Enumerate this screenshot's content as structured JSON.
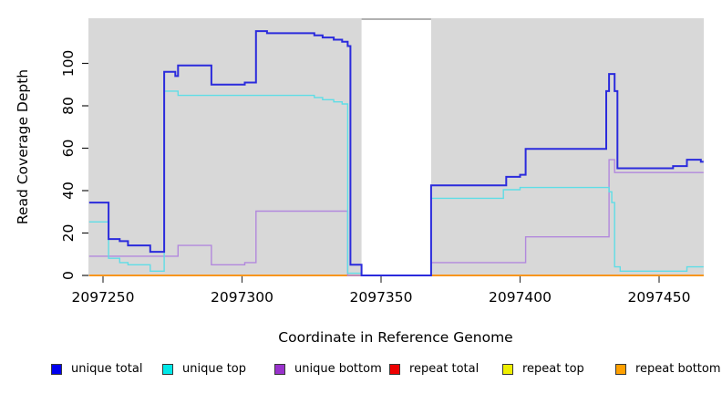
{
  "figure": {
    "background": "#ffffff",
    "plot_background": "#d8d8d8",
    "gap_top_border": "#979797"
  },
  "y_axis": {
    "title": "Read Coverage Depth",
    "ticks": [
      "0",
      "20",
      "40",
      "60",
      "80",
      "100"
    ]
  },
  "x_axis": {
    "title": "Coordinate in Reference Genome",
    "ticks": [
      "2097250",
      "2097300",
      "2097350",
      "2097400",
      "2097450"
    ]
  },
  "legend": {
    "position": "bottom",
    "items": [
      {
        "label": "unique total",
        "color": "#0000EE"
      },
      {
        "label": "unique top",
        "color": "#00E8E8"
      },
      {
        "label": "unique bottom",
        "color": "#9932CC"
      },
      {
        "label": "repeat total",
        "color": "#EE0000"
      },
      {
        "label": "repeat top",
        "color": "#EEEE00"
      },
      {
        "label": "repeat bottom",
        "color": "#FFA000"
      }
    ]
  },
  "chart_data": {
    "type": "line",
    "subtype": "step",
    "title": "",
    "xlabel": "Coordinate in Reference Genome",
    "ylabel": "Read Coverage Depth",
    "xlim": [
      2097245,
      2097466
    ],
    "ylim": [
      0,
      120
    ],
    "x_ticks": [
      2097250,
      2097300,
      2097350,
      2097400,
      2097450
    ],
    "y_ticks": [
      0,
      20,
      40,
      60,
      80,
      100
    ],
    "grid": false,
    "legend_position": "bottom",
    "no_data_region": [
      2097343,
      2097368
    ],
    "x_end": 2097466,
    "series": [
      {
        "id": "repeat_total",
        "name": "repeat total",
        "line_color": "#DD0000",
        "width": 1.2,
        "steps": [
          [
            2097245,
            0
          ]
        ]
      },
      {
        "id": "repeat_top",
        "name": "repeat top",
        "line_color": "#EEEE00",
        "width": 1.2,
        "steps": [
          [
            2097245,
            0
          ]
        ]
      },
      {
        "id": "repeat_bottom",
        "name": "repeat bottom",
        "line_color": "#FF8C00",
        "width": 1.6,
        "steps": [
          [
            2097245,
            0
          ]
        ]
      },
      {
        "id": "unique_bottom",
        "name": "unique bottom",
        "line_color": "#B288DD",
        "width": 1.4,
        "steps": [
          [
            2097245,
            9
          ],
          [
            2097277,
            14
          ],
          [
            2097289,
            5
          ],
          [
            2097301,
            6
          ],
          [
            2097305,
            30
          ],
          [
            2097338,
            0
          ],
          [
            2097368,
            6
          ],
          [
            2097402,
            18
          ],
          [
            2097432,
            54
          ],
          [
            2097434,
            48
          ]
        ]
      },
      {
        "id": "unique_top",
        "name": "unique top",
        "line_color": "#5FDDE6",
        "width": 1.4,
        "steps": [
          [
            2097245,
            25
          ],
          [
            2097252,
            8
          ],
          [
            2097256,
            6
          ],
          [
            2097259,
            5
          ],
          [
            2097267,
            2
          ],
          [
            2097272,
            86
          ],
          [
            2097277,
            84
          ],
          [
            2097326,
            83
          ],
          [
            2097329,
            82
          ],
          [
            2097333,
            81
          ],
          [
            2097336,
            80
          ],
          [
            2097338,
            1
          ],
          [
            2097343,
            0
          ],
          [
            2097368,
            36
          ],
          [
            2097394,
            40
          ],
          [
            2097400,
            41
          ],
          [
            2097432,
            39
          ],
          [
            2097433,
            34
          ],
          [
            2097434,
            4
          ],
          [
            2097436,
            2
          ],
          [
            2097460,
            4
          ]
        ]
      },
      {
        "id": "unique_total",
        "name": "unique total",
        "line_color": "#2B2BDC",
        "width": 2,
        "steps": [
          [
            2097245,
            34
          ],
          [
            2097252,
            17
          ],
          [
            2097256,
            16
          ],
          [
            2097259,
            14
          ],
          [
            2097267,
            11
          ],
          [
            2097272,
            95
          ],
          [
            2097276,
            93
          ],
          [
            2097277,
            98
          ],
          [
            2097289,
            89
          ],
          [
            2097301,
            90
          ],
          [
            2097305,
            114
          ],
          [
            2097309,
            113
          ],
          [
            2097326,
            112
          ],
          [
            2097329,
            111
          ],
          [
            2097333,
            110
          ],
          [
            2097336,
            109
          ],
          [
            2097338,
            107
          ],
          [
            2097339,
            5
          ],
          [
            2097343,
            0
          ],
          [
            2097368,
            42
          ],
          [
            2097395,
            46
          ],
          [
            2097400,
            47
          ],
          [
            2097402,
            59
          ],
          [
            2097431,
            86
          ],
          [
            2097432,
            94
          ],
          [
            2097434,
            86
          ],
          [
            2097435,
            50
          ],
          [
            2097455,
            51
          ],
          [
            2097460,
            54
          ],
          [
            2097465,
            53
          ]
        ]
      }
    ]
  }
}
